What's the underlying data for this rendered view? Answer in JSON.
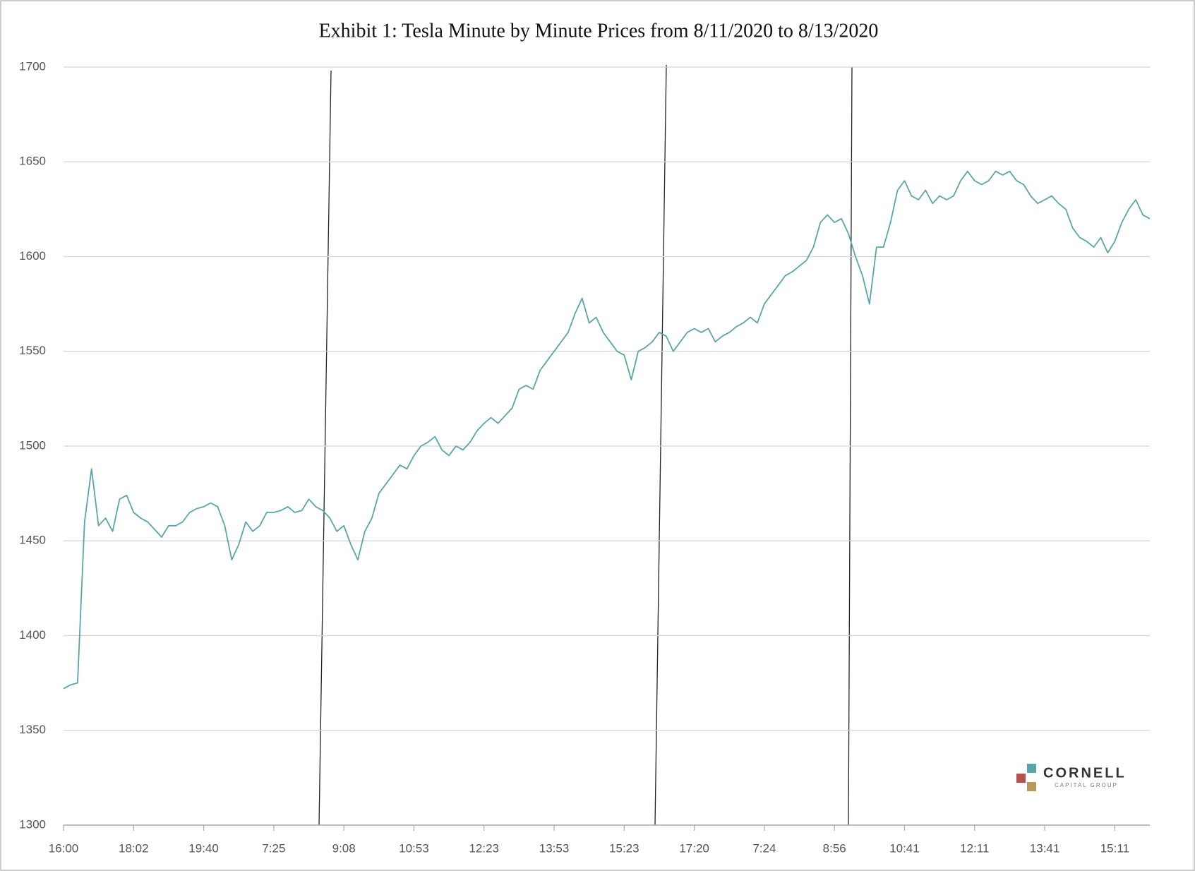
{
  "chart_data": {
    "type": "line",
    "title": "Exhibit 1: Tesla Minute by Minute Prices from 8/11/2020 to 8/13/2020",
    "categories": [
      "16:00",
      null,
      null,
      null,
      null,
      null,
      null,
      null,
      null,
      null,
      "18:02",
      null,
      null,
      null,
      null,
      null,
      null,
      null,
      null,
      null,
      "19:40",
      null,
      null,
      null,
      null,
      null,
      null,
      null,
      null,
      null,
      "7:25",
      null,
      null,
      null,
      null,
      null,
      null,
      null,
      null,
      null,
      "9:08",
      null,
      null,
      null,
      null,
      null,
      null,
      null,
      null,
      null,
      "10:53",
      null,
      null,
      null,
      null,
      null,
      null,
      null,
      null,
      null,
      "12:23",
      null,
      null,
      null,
      null,
      null,
      null,
      null,
      null,
      null,
      "13:53",
      null,
      null,
      null,
      null,
      null,
      null,
      null,
      null,
      null,
      "15:23",
      null,
      null,
      null,
      null,
      null,
      null,
      null,
      null,
      null,
      "17:20",
      null,
      null,
      null,
      null,
      null,
      null,
      null,
      null,
      null,
      "7:24",
      null,
      null,
      null,
      null,
      null,
      null,
      null,
      null,
      null,
      "8:56",
      null,
      null,
      null,
      null,
      null,
      null,
      null,
      null,
      null,
      "10:41",
      null,
      null,
      null,
      null,
      null,
      null,
      null,
      null,
      null,
      "12:11",
      null,
      null,
      null,
      null,
      null,
      null,
      null,
      null,
      null,
      "13:41",
      null,
      null,
      null,
      null,
      null,
      null,
      null,
      null,
      null,
      "15:11",
      null,
      null,
      null,
      null,
      null
    ],
    "series": [
      {
        "name": "Tesla",
        "color": "#5aa5a8",
        "values": [
          1372,
          1374,
          1375,
          1460,
          1488,
          1458,
          1462,
          1455,
          1472,
          1474,
          1465,
          1462,
          1460,
          1456,
          1452,
          1458,
          1458,
          1460,
          1465,
          1467,
          1468,
          1470,
          1468,
          1458,
          1440,
          1448,
          1460,
          1455,
          1458,
          1465,
          1465,
          1466,
          1468,
          1465,
          1466,
          1472,
          1468,
          1466,
          1462,
          1455,
          1458,
          1448,
          1440,
          1455,
          1462,
          1475,
          1480,
          1485,
          1490,
          1488,
          1495,
          1500,
          1502,
          1505,
          1498,
          1495,
          1500,
          1498,
          1502,
          1508,
          1512,
          1515,
          1512,
          1516,
          1520,
          1530,
          1532,
          1530,
          1540,
          1545,
          1550,
          1555,
          1560,
          1570,
          1578,
          1565,
          1568,
          1560,
          1555,
          1550,
          1548,
          1535,
          1550,
          1552,
          1555,
          1560,
          1558,
          1550,
          1555,
          1560,
          1562,
          1560,
          1562,
          1555,
          1558,
          1560,
          1563,
          1565,
          1568,
          1565,
          1575,
          1580,
          1585,
          1590,
          1592,
          1595,
          1598,
          1605,
          1618,
          1622,
          1618,
          1620,
          1612,
          1600,
          1590,
          1575,
          1605,
          1605,
          1618,
          1635,
          1640,
          1632,
          1630,
          1635,
          1628,
          1632,
          1630,
          1632,
          1640,
          1645,
          1640,
          1638,
          1640,
          1645,
          1643,
          1645,
          1640,
          1638,
          1632,
          1628,
          1630,
          1632,
          1628,
          1625,
          1615,
          1610,
          1608,
          1605,
          1610,
          1602,
          1608,
          1618,
          1625,
          1630,
          1622,
          1620
        ]
      }
    ],
    "ylim": [
      1300,
      1700
    ],
    "yticks": [
      1300,
      1350,
      1400,
      1450,
      1500,
      1550,
      1600,
      1650,
      1700
    ],
    "grid": true,
    "logo": {
      "name": "CORNELL",
      "tagline": "CAPITAL GROUP"
    }
  }
}
